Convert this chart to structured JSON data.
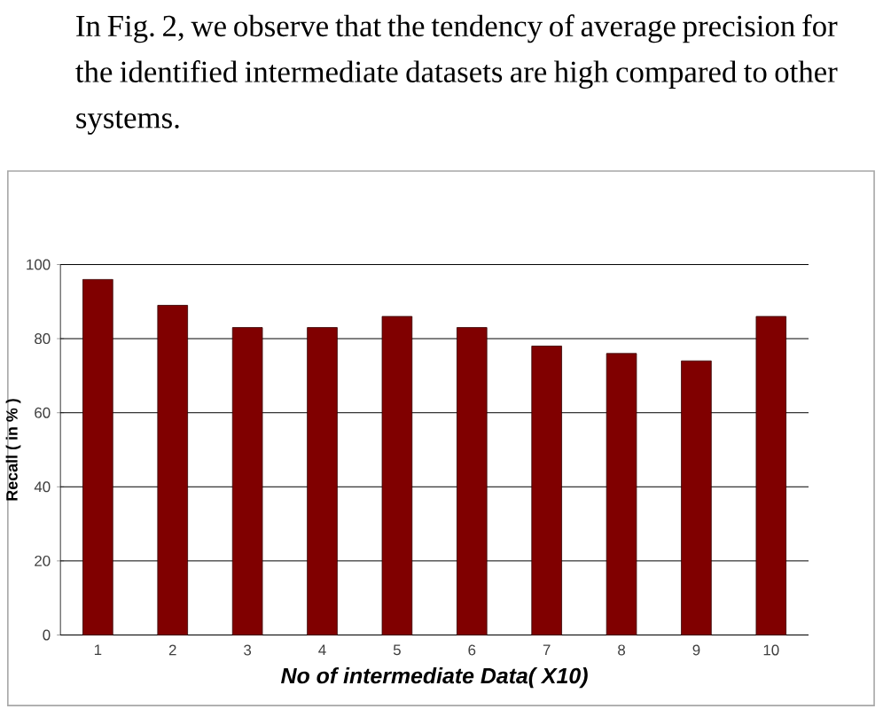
{
  "chart_data": {
    "type": "bar",
    "annotations": [
      "In Fig. 2, we observe that the tendency of average precision for the identified intermediate datasets are high compared to other systems."
    ],
    "xlabel": "No of intermediate Data( X10)",
    "ylabel": "Recall ( in % )",
    "categories": [
      "1",
      "2",
      "3",
      "4",
      "5",
      "6",
      "7",
      "8",
      "9",
      "10"
    ],
    "values": [
      96,
      89,
      83,
      83,
      86,
      83,
      78,
      76,
      74,
      86
    ],
    "color": "#800000",
    "ylim": [
      0,
      100
    ],
    "yticks": [
      0,
      20,
      40,
      60,
      80,
      100
    ],
    "grid": "y"
  }
}
